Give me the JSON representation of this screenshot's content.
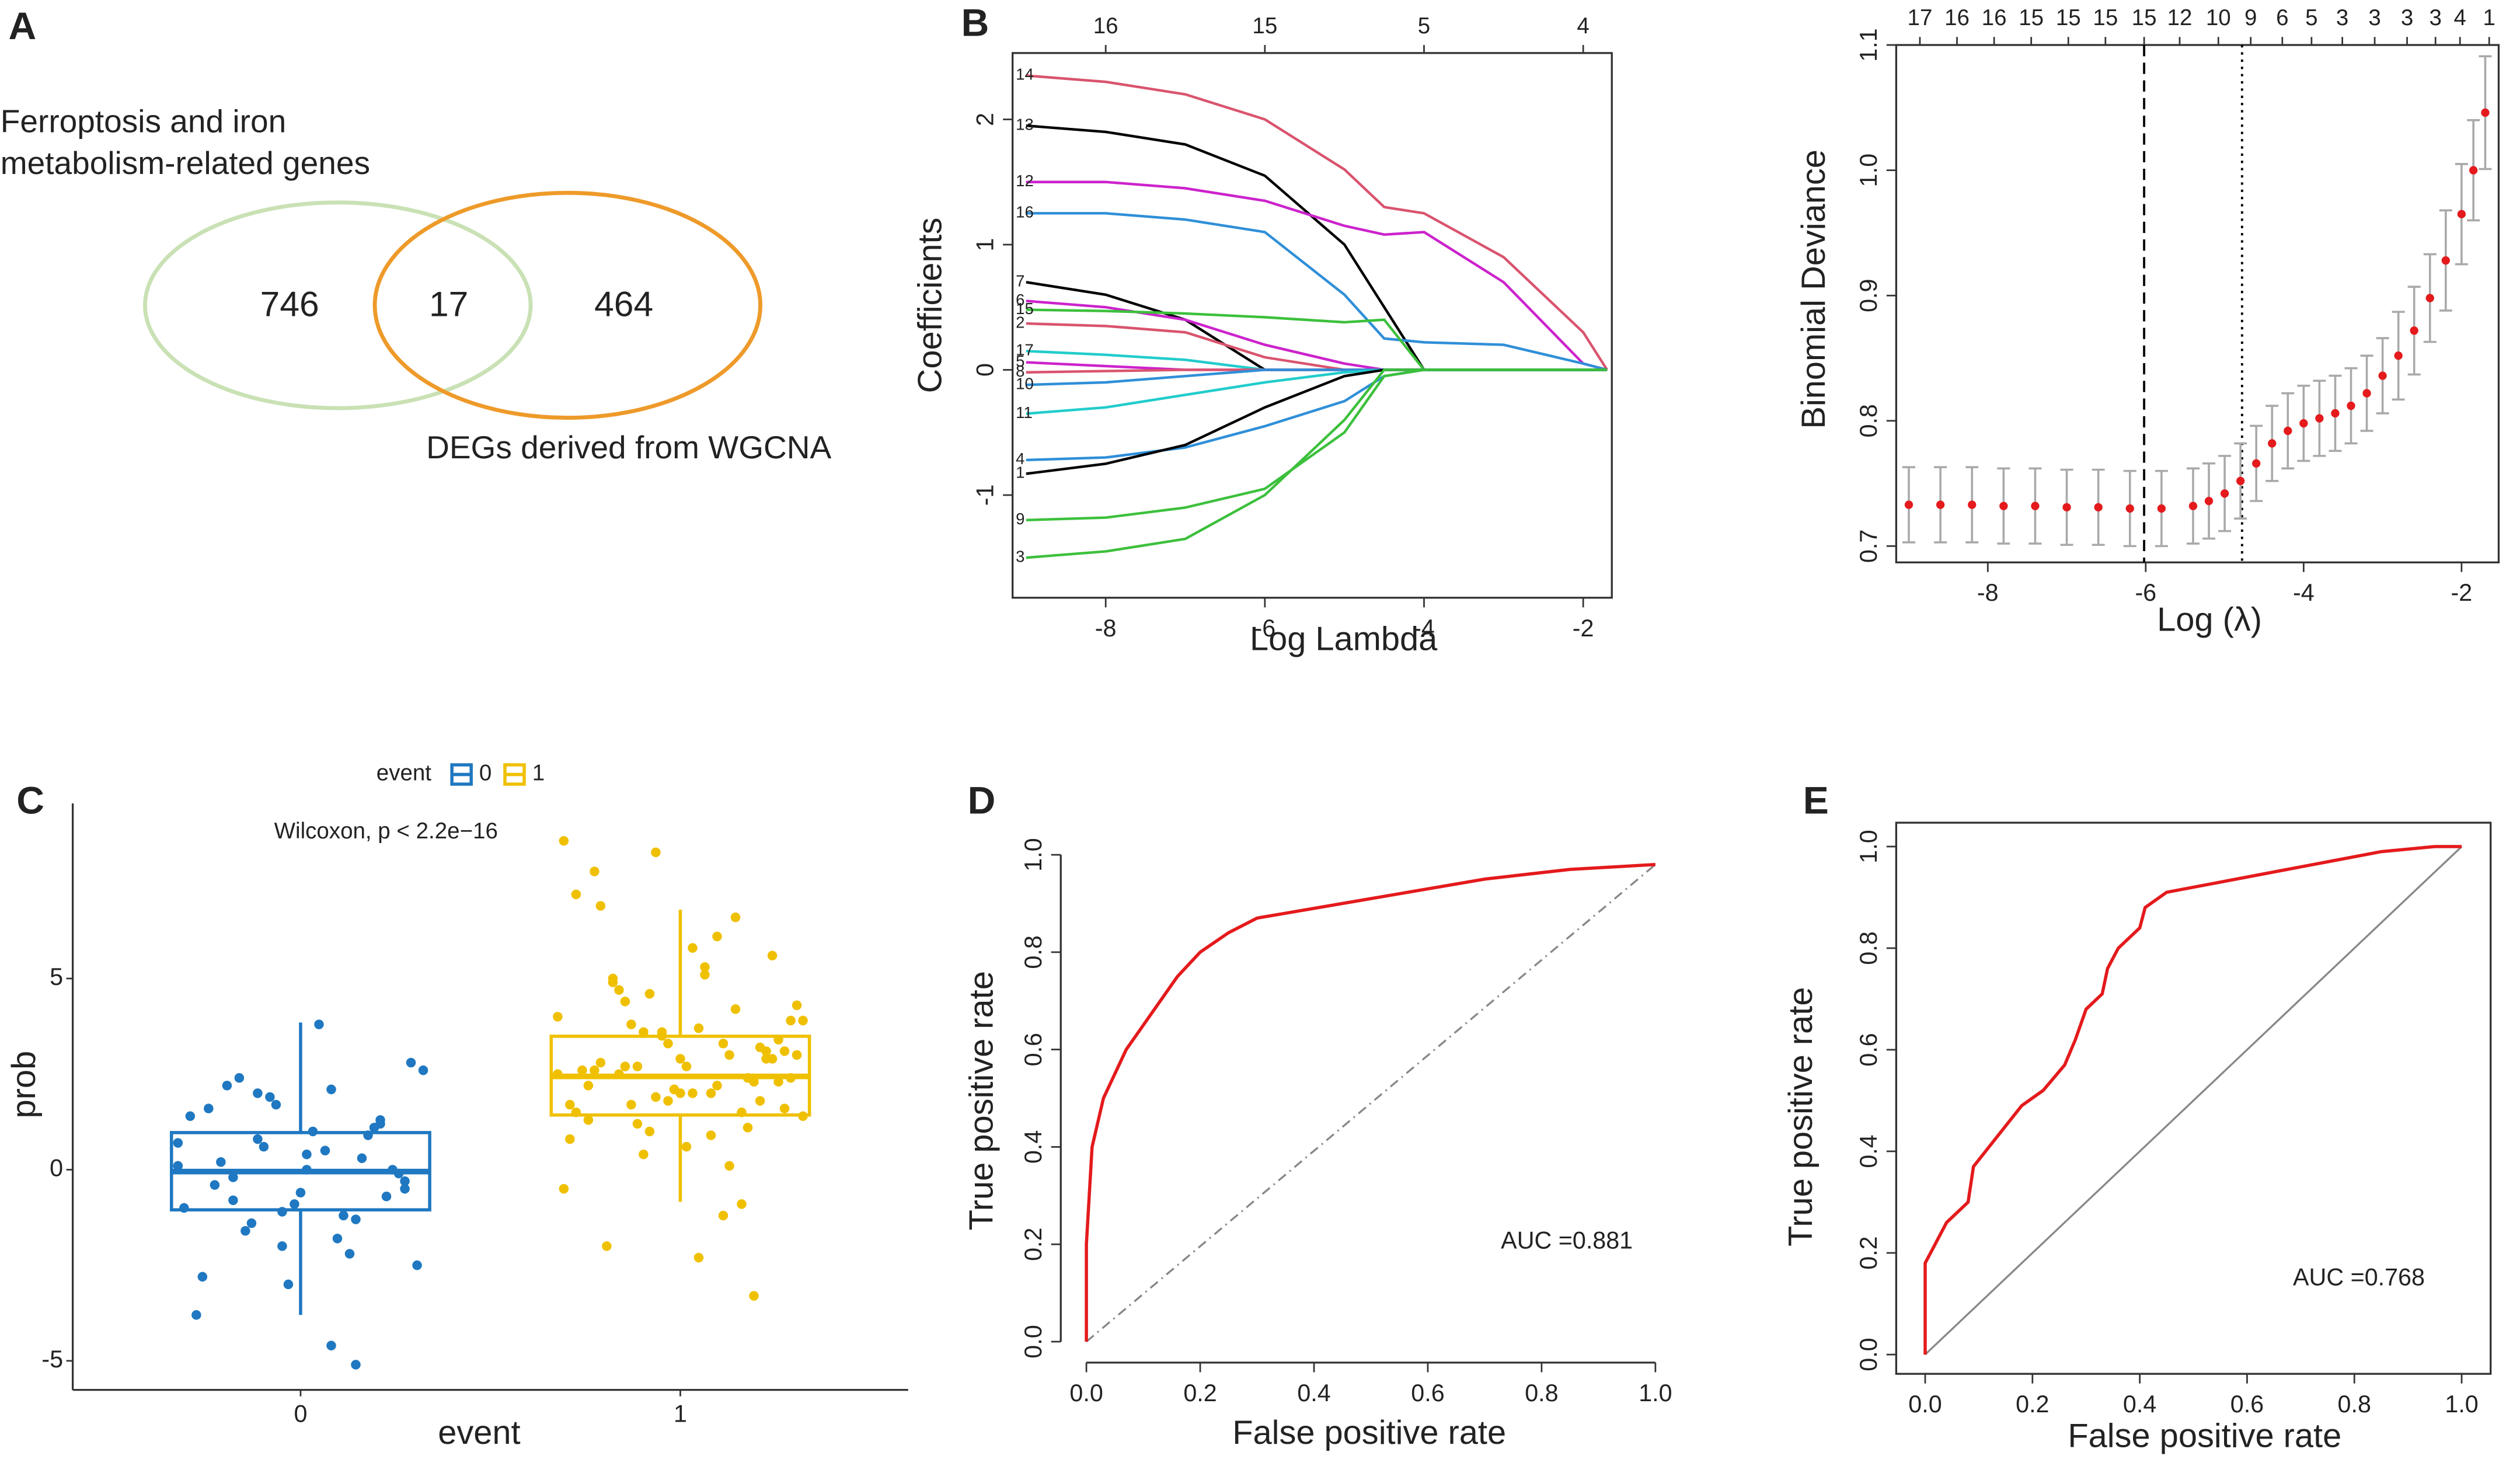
{
  "chart_data": [
    {
      "type": "venn",
      "panel": "A",
      "sets": [
        {
          "label": [
            "Ferroptosis and iron",
            "metabolism-related genes"
          ],
          "color": "#c9e1b4"
        },
        {
          "label": [
            "DEGs derived from WGCNA"
          ],
          "color": "#ee9a2a"
        }
      ],
      "values": [
        746,
        17,
        464
      ]
    },
    {
      "type": "line",
      "panel": "B",
      "xlabel": "Log Lambda",
      "ylabel": "Coefficients",
      "xlim": [
        -9.17,
        -1.64
      ],
      "ylim": [
        -1.82,
        2.53
      ],
      "xticks": [
        -8,
        -6,
        -4,
        -2
      ],
      "yticks": [
        -1,
        0,
        1,
        2
      ],
      "x2ticks": [
        {
          "value": -8,
          "label": "16"
        },
        {
          "value": -6,
          "label": "15"
        },
        {
          "value": -4,
          "label": "5"
        },
        {
          "value": -2,
          "label": "4"
        }
      ],
      "x": [
        -9,
        -8,
        -7,
        -6,
        -5,
        -4.5,
        -4,
        -3,
        -2,
        -1.7
      ],
      "series": [
        {
          "name": "14",
          "color": "#d9546e",
          "values": [
            2.35,
            2.3,
            2.2,
            2.0,
            1.6,
            1.3,
            1.25,
            0.9,
            0.3,
            0
          ]
        },
        {
          "name": "13",
          "color": "#000000",
          "values": [
            1.95,
            1.9,
            1.8,
            1.55,
            1.0,
            0.5,
            0,
            0,
            0,
            0
          ]
        },
        {
          "name": "12",
          "color": "#cc22cc",
          "values": [
            1.5,
            1.5,
            1.45,
            1.35,
            1.15,
            1.08,
            1.1,
            0.7,
            0.05,
            0
          ]
        },
        {
          "name": "16",
          "color": "#2f8fd8",
          "values": [
            1.25,
            1.25,
            1.2,
            1.1,
            0.6,
            0.25,
            0.22,
            0.2,
            0.05,
            0
          ]
        },
        {
          "name": "7",
          "color": "#000000",
          "values": [
            0.7,
            0.6,
            0.4,
            0,
            0,
            0,
            0,
            0,
            0,
            0
          ]
        },
        {
          "name": "6",
          "color": "#cc22cc",
          "values": [
            0.55,
            0.5,
            0.4,
            0.2,
            0.05,
            0,
            0,
            0,
            0,
            0
          ]
        },
        {
          "name": "15",
          "color": "#3cc03c",
          "values": [
            0.48,
            0.47,
            0.45,
            0.42,
            0.38,
            0.4,
            0,
            0,
            0,
            0
          ]
        },
        {
          "name": "2",
          "color": "#d9546e",
          "values": [
            0.37,
            0.35,
            0.3,
            0.1,
            0,
            0,
            0,
            0,
            0,
            0
          ]
        },
        {
          "name": "17",
          "color": "#22cccc",
          "values": [
            0.15,
            0.12,
            0.08,
            0,
            0,
            0,
            0,
            0,
            0,
            0
          ]
        },
        {
          "name": "5",
          "color": "#cc22cc",
          "values": [
            0.06,
            0.03,
            0,
            0,
            0,
            0,
            0,
            0,
            0,
            0
          ]
        },
        {
          "name": "8",
          "color": "#d9546e",
          "values": [
            -0.02,
            -0.01,
            0,
            0,
            0,
            0,
            0,
            0,
            0,
            0
          ]
        },
        {
          "name": "10",
          "color": "#2f8fd8",
          "values": [
            -0.12,
            -0.1,
            -0.05,
            0,
            0,
            0,
            0,
            0,
            0,
            0
          ]
        },
        {
          "name": "11",
          "color": "#22cccc",
          "values": [
            -0.35,
            -0.3,
            -0.2,
            -0.1,
            -0.02,
            0,
            0,
            0,
            0,
            0
          ]
        },
        {
          "name": "4",
          "color": "#2f8fd8",
          "values": [
            -0.72,
            -0.7,
            -0.62,
            -0.45,
            -0.25,
            -0.05,
            0,
            0,
            0,
            0
          ]
        },
        {
          "name": "1",
          "color": "#000000",
          "values": [
            -0.83,
            -0.75,
            -0.6,
            -0.3,
            -0.05,
            0,
            0,
            0,
            0,
            0
          ]
        },
        {
          "name": "9",
          "color": "#3cc03c",
          "values": [
            -1.2,
            -1.18,
            -1.1,
            -0.95,
            -0.5,
            -0.05,
            0,
            0,
            0,
            0
          ]
        },
        {
          "name": "3",
          "color": "#3cc03c",
          "values": [
            -1.5,
            -1.45,
            -1.35,
            -1.0,
            -0.4,
            0,
            0,
            0,
            0,
            0
          ]
        }
      ]
    },
    {
      "type": "errorbar",
      "xlabel": "Log (λ)",
      "ylabel": "Binomial Deviance",
      "xlim": [
        -9.16,
        -1.53
      ],
      "ylim": [
        0.687,
        1.1
      ],
      "xticks": [
        -8,
        -6,
        -4,
        -2
      ],
      "yticks": [
        0.7,
        0.8,
        0.9,
        {
          "value": 1,
          "label": "1.0"
        },
        1.1
      ],
      "x2ticks": [
        {
          "value": -8.86,
          "label": "17"
        },
        {
          "value": -8.39,
          "label": "16"
        },
        {
          "value": -7.92,
          "label": "16"
        },
        {
          "value": -7.45,
          "label": "15"
        },
        {
          "value": -6.98,
          "label": "15"
        },
        {
          "value": -6.51,
          "label": "15"
        },
        {
          "value": -6.02,
          "label": "15"
        },
        {
          "value": -5.57,
          "label": "12"
        },
        {
          "value": -5.08,
          "label": "10"
        },
        {
          "value": -4.67,
          "label": "9"
        },
        {
          "value": -4.27,
          "label": "6"
        },
        {
          "value": -3.9,
          "label": "5"
        },
        {
          "value": -3.51,
          "label": "3"
        },
        {
          "value": -3.1,
          "label": "3"
        },
        {
          "value": -2.69,
          "label": "3"
        },
        {
          "value": -2.33,
          "label": "3"
        },
        {
          "value": -2.02,
          "label": "4"
        },
        {
          "value": -1.65,
          "label": "1"
        }
      ],
      "vlines": [
        {
          "value": -6.02,
          "style": "dashed"
        },
        {
          "value": -4.78,
          "style": "dotted"
        }
      ],
      "color": "#e41a1c",
      "error_color": "#a9a9a9",
      "x": [
        -9,
        -8.6,
        -8.2,
        -7.8,
        -7.4,
        -7,
        -6.6,
        -6.2,
        -5.8,
        -5.4,
        -5.2,
        -5,
        -4.8,
        -4.6,
        -4.4,
        -4.2,
        -4,
        -3.8,
        -3.6,
        -3.4,
        -3.2,
        -3,
        -2.8,
        -2.6,
        -2.4,
        -2.2,
        -2,
        -1.85,
        -1.7
      ],
      "values": [
        0.733,
        0.733,
        0.733,
        0.732,
        0.732,
        0.731,
        0.731,
        0.73,
        0.73,
        0.732,
        0.736,
        0.742,
        0.752,
        0.766,
        0.782,
        0.792,
        0.798,
        0.802,
        0.806,
        0.812,
        0.822,
        0.836,
        0.852,
        0.872,
        0.898,
        0.928,
        0.965,
        1.0,
        1.046
      ],
      "errors": [
        0.03,
        0.03,
        0.03,
        0.03,
        0.03,
        0.03,
        0.03,
        0.03,
        0.03,
        0.03,
        0.03,
        0.03,
        0.03,
        0.03,
        0.03,
        0.03,
        0.03,
        0.03,
        0.03,
        0.03,
        0.03,
        0.03,
        0.035,
        0.035,
        0.035,
        0.04,
        0.04,
        0.04,
        0.045
      ]
    },
    {
      "type": "box",
      "panel": "C",
      "xlabel": "event",
      "ylabel": "prob",
      "legend_title": "event",
      "annotation": "Wilcoxon, p < 2.2e−16",
      "categories": [
        "0",
        "1"
      ],
      "colors": [
        "#1f78c1",
        "#efc000"
      ],
      "ylim": [
        -5.76,
        9.58
      ],
      "yticks": [
        -5,
        0,
        5
      ],
      "boxes": [
        {
          "q1": -1.05,
          "median": -0.05,
          "q3": 0.97,
          "whisker_low": -3.8,
          "whisker_high": 3.85
        },
        {
          "q1": 1.43,
          "median": 2.44,
          "q3": 3.49,
          "whisker_low": -0.84,
          "whisker_high": 6.8
        }
      ],
      "points": [
        [
          0.1,
          -0.5,
          1.2,
          -1.3,
          2.1,
          0.4,
          -2.0,
          0.8,
          -0.2,
          1.6,
          -1.0,
          2.8,
          -0.7,
          0.3,
          -1.8,
          1.0,
          -3.0,
          0.6,
          2.4,
          -0.4,
          1.4,
          -2.5,
          0.0,
          0.9,
          -1.2,
          3.8,
          -0.9,
          1.9,
          -1.6,
          0.2,
          -3.8,
          2.6,
          -0.1,
          1.1,
          -2.2,
          0.5,
          -0.6,
          1.7,
          -1.4,
          2.2,
          -2.8,
          0.7,
          -0.3,
          1.3,
          -5.1,
          -4.6,
          0.0,
          -1.1,
          2.0,
          -0.8
        ],
        [
          2.5,
          3.1,
          1.8,
          4.2,
          0.9,
          2.7,
          3.6,
          1.2,
          5.0,
          2.2,
          -0.5,
          3.9,
          2.9,
          1.5,
          6.1,
          2.0,
          3.3,
          0.4,
          4.7,
          2.6,
          1.7,
          3.0,
          5.6,
          2.4,
          -1.2,
          3.7,
          2.1,
          1.0,
          4.4,
          2.8,
          7.2,
          1.4,
          3.4,
          2.3,
          0.1,
          5.3,
          2.9,
          1.9,
          3.8,
          -2.0,
          2.6,
          4.0,
          1.6,
          3.2,
          6.6,
          2.0,
          0.6,
          3.5,
          2.7,
          4.9,
          1.3,
          8.6,
          2.4,
          3.1,
          -0.9,
          2.2,
          5.8,
          1.8,
          3.6,
          2.5,
          7.8,
          0.8,
          4.3,
          2.9,
          1.1,
          3.3,
          -2.3,
          2.1,
          4.6,
          2.7,
          6.9,
          1.5,
          3.9,
          2.3,
          -3.3,
          3.0,
          5.1,
          2.0,
          8.3,
          1.7
        ]
      ]
    },
    {
      "type": "line",
      "panel": "D",
      "xlabel": "False positive rate",
      "ylabel": "True positive rate",
      "annotation": "AUC =0.881",
      "color": "#e41a1c",
      "reference_line": "dashdot",
      "box": false,
      "xlim": [
        -0.045,
        1.042
      ],
      "ylim": [
        -0.043,
        1.056
      ],
      "xticks": [
        {
          "value": 0,
          "label": "0.0"
        },
        0.2,
        0.4,
        0.6,
        0.8,
        {
          "value": 1,
          "label": "1.0"
        }
      ],
      "yticks": [
        {
          "value": 0,
          "label": "0.0"
        },
        0.2,
        0.4,
        0.6,
        0.8,
        {
          "value": 1,
          "label": "1.0"
        }
      ],
      "x": [
        0,
        0,
        0.005,
        0.01,
        0.02,
        0.03,
        0.05,
        0.07,
        0.1,
        0.13,
        0.16,
        0.2,
        0.25,
        0.3,
        0.35,
        0.45,
        0.55,
        0.7,
        0.85,
        1.0
      ],
      "values": [
        0,
        0.2,
        0.3,
        0.4,
        0.45,
        0.5,
        0.55,
        0.6,
        0.65,
        0.7,
        0.75,
        0.8,
        0.84,
        0.87,
        0.88,
        0.9,
        0.92,
        0.95,
        0.97,
        0.98
      ]
    },
    {
      "type": "line",
      "panel": "E",
      "xlabel": "False positive rate",
      "ylabel": "True positive rate",
      "annotation": "AUC =0.768",
      "color": "#e41a1c",
      "reference_line": "solid",
      "box": true,
      "xlim": [
        -0.054,
        1.054
      ],
      "ylim": [
        -0.038,
        1.047
      ],
      "xticks": [
        {
          "value": 0,
          "label": "0.0"
        },
        0.2,
        0.4,
        0.6,
        0.8,
        {
          "value": 1,
          "label": "1.0"
        }
      ],
      "yticks": [
        {
          "value": 0,
          "label": "0.0"
        },
        0.2,
        0.4,
        0.6,
        0.8,
        {
          "value": 1,
          "label": "1.0"
        }
      ],
      "x": [
        0,
        0,
        0.02,
        0.04,
        0.06,
        0.08,
        0.09,
        0.12,
        0.15,
        0.18,
        0.22,
        0.26,
        0.28,
        0.3,
        0.33,
        0.34,
        0.36,
        0.4,
        0.41,
        0.45,
        0.55,
        0.65,
        0.75,
        0.85,
        0.95,
        1
      ],
      "values": [
        0,
        0.18,
        0.22,
        0.26,
        0.28,
        0.3,
        0.37,
        0.41,
        0.45,
        0.49,
        0.52,
        0.57,
        0.62,
        0.68,
        0.71,
        0.76,
        0.8,
        0.84,
        0.88,
        0.91,
        0.93,
        0.95,
        0.97,
        0.99,
        1.0,
        1.0
      ]
    }
  ]
}
